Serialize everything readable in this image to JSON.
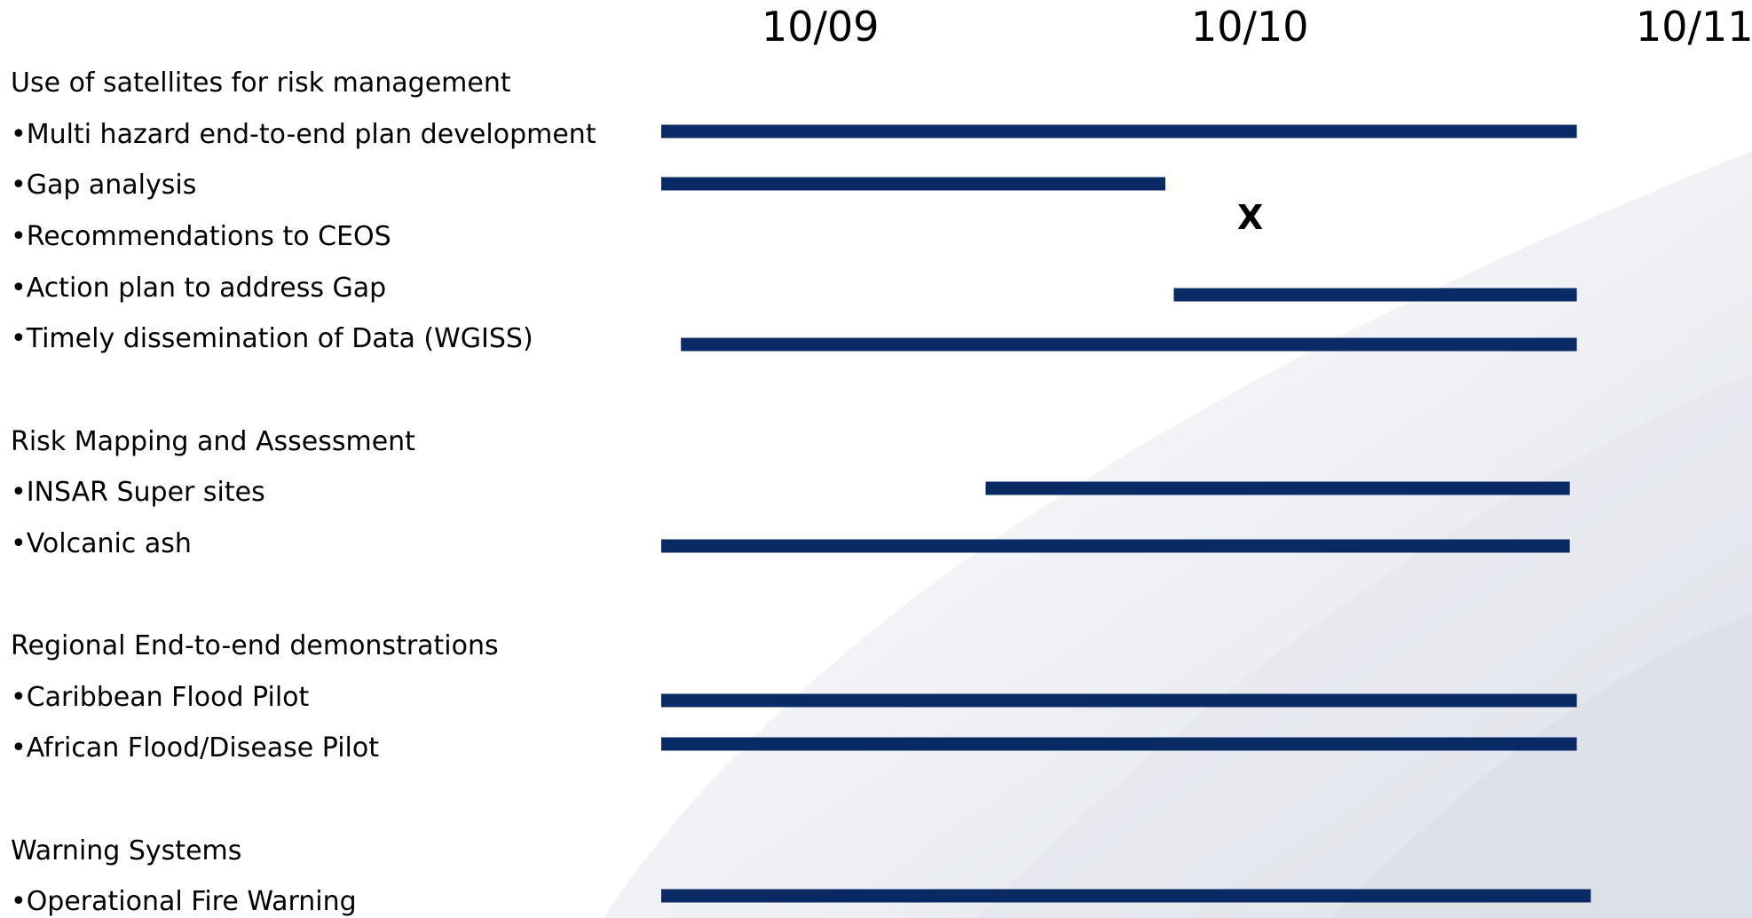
{
  "timeline": {
    "dates": [
      "10/09",
      "10/10",
      "10/11"
    ],
    "bar_color": "#0a2a66",
    "marker_text": "X"
  },
  "tasks": [
    {
      "label": "Use of satellites for risk management"
    },
    {
      "label": "•Multi hazard end-to-end plan development",
      "start": "2009-10-01",
      "end": "2011-07-15"
    },
    {
      "label": "•Gap analysis",
      "start": "2009-10-01",
      "end": "2010-09-25"
    },
    {
      "label": "•Recommendations to CEOS",
      "milestone": "2010-10-01"
    },
    {
      "label": "•Action plan to address Gap",
      "start": "2010-10-01",
      "end": "2011-07-15"
    },
    {
      "label": "•Timely dissemination of Data (WGISS)",
      "start": "2009-10-15",
      "end": "2011-07-15"
    },
    {
      "label": "Risk Mapping and Assessment"
    },
    {
      "label": "•INSAR Super sites",
      "start": "2010-05-20",
      "end": "2011-07-10"
    },
    {
      "label": "•Volcanic ash",
      "start": "2009-10-01",
      "end": "2011-07-10"
    },
    {
      "label": "Regional End-to-end demonstrations"
    },
    {
      "label": "•Caribbean Flood Pilot",
      "start": "2009-10-01",
      "end": "2011-07-15"
    },
    {
      "label": "•African Flood/Disease Pilot",
      "start": "2009-10-01",
      "end": "2011-07-15"
    },
    {
      "label": "Warning Systems"
    },
    {
      "label": "•Operational Fire Warning",
      "start": "2009-10-01",
      "end": "2011-07-25"
    }
  ]
}
